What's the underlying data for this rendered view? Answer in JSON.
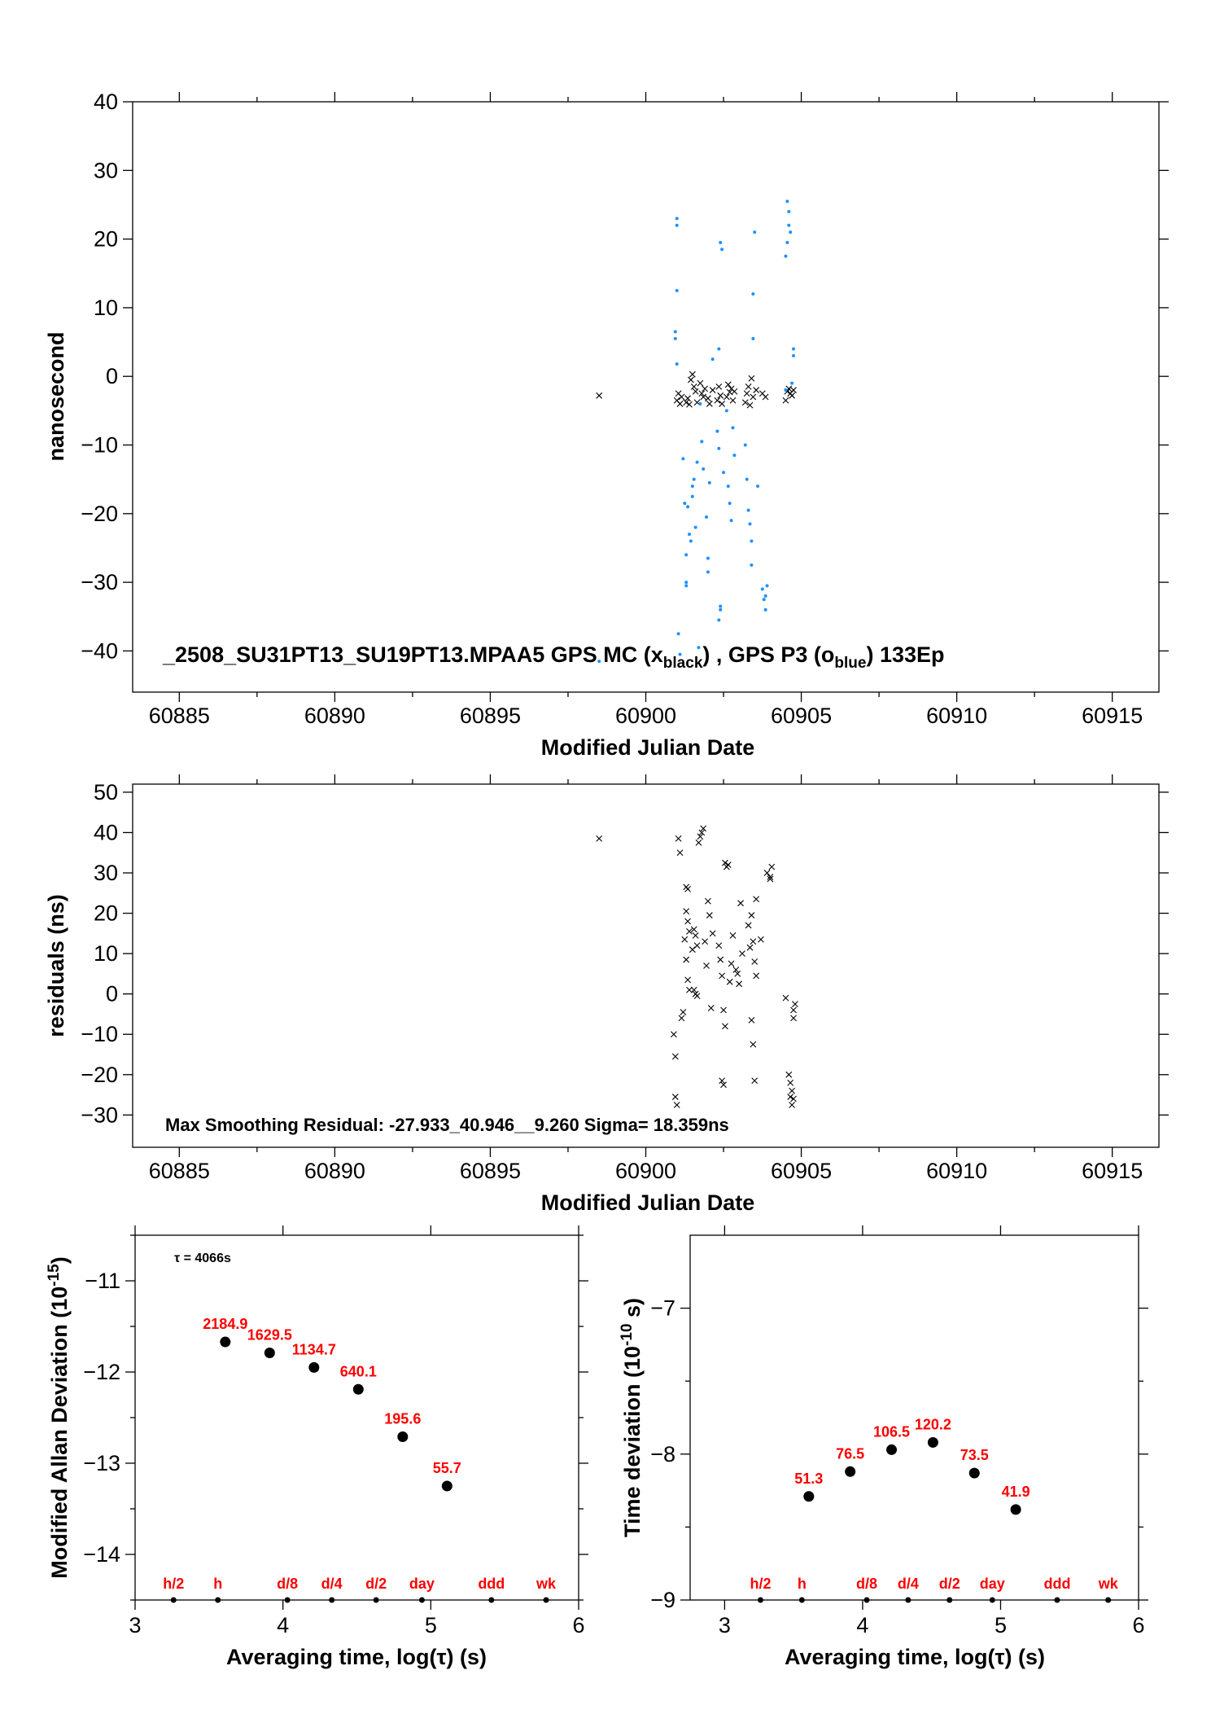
{
  "charts": {
    "top": {
      "title_line": "_2508_SU31PT13_SU19PT13.MPAA5    GPS MC (x",
      "title_sub1": "black",
      "title_mid": ") ,  GPS P3 (o",
      "title_sub2": "blue",
      "title_end": ")  133Ep",
      "xlabel": "Modified Julian Date",
      "ylabel": "nanosecond"
    },
    "mid": {
      "annotation": "Max Smoothing Residual: -27.933_40.946__9.260  Sigma= 18.359ns",
      "xlabel": "Modified Julian Date",
      "ylabel": "residuals (ns)"
    },
    "bl": {
      "tau_note": "τ = 4066s",
      "xlabel": "Averaging time, log(τ) (s)",
      "ylabel_main": "Modified Allan Deviation (10",
      "ylabel_sup": "-15",
      "ylabel_end": ")"
    },
    "br": {
      "xlabel": "Averaging time, log(τ) (s)",
      "ylabel_main": "Time deviation (10",
      "ylabel_sup": "-10",
      "ylabel_end": " s)"
    }
  },
  "chart_data": [
    {
      "type": "scatter",
      "id": "top",
      "xlim": [
        60883.5,
        60916.5
      ],
      "ylim": [
        -46,
        40
      ],
      "xticks": [
        60885,
        60890,
        60895,
        60900,
        60905,
        60910,
        60915
      ],
      "yticks": [
        -40,
        -30,
        -20,
        -10,
        0,
        10,
        20,
        30,
        40
      ],
      "series": [
        {
          "marker": "x",
          "color": "#000000",
          "points": [
            [
              60898.5,
              -2.8
            ],
            [
              60901.0,
              -3.5
            ],
            [
              60901.05,
              -2.5
            ],
            [
              60901.1,
              -4.0
            ],
            [
              60901.15,
              -3.0
            ],
            [
              60901.3,
              -3.8
            ],
            [
              60901.35,
              -3.2
            ],
            [
              60901.4,
              -4.1
            ],
            [
              60901.45,
              -0.5
            ],
            [
              60901.5,
              0.3
            ],
            [
              60901.55,
              -1.5
            ],
            [
              60901.6,
              -2.2
            ],
            [
              60901.65,
              -3.8
            ],
            [
              60901.75,
              -1.0
            ],
            [
              60901.8,
              -2.5
            ],
            [
              60901.85,
              -3.0
            ],
            [
              60901.9,
              -1.8
            ],
            [
              60902.0,
              -3.2
            ],
            [
              60902.05,
              -4.0
            ],
            [
              60902.15,
              -2.0
            ],
            [
              60902.3,
              -3.5
            ],
            [
              60902.35,
              -1.5
            ],
            [
              60902.4,
              -2.8
            ],
            [
              60902.45,
              -4.0
            ],
            [
              60902.6,
              -3.0
            ],
            [
              60902.65,
              -1.2
            ],
            [
              60902.7,
              -2.3
            ],
            [
              60902.75,
              -1.8
            ],
            [
              60902.8,
              -3.5
            ],
            [
              60902.85,
              -2.2
            ],
            [
              60903.2,
              -3.8
            ],
            [
              60903.25,
              -2.5
            ],
            [
              60903.3,
              -1.5
            ],
            [
              60903.35,
              -4.2
            ],
            [
              60903.4,
              -0.3
            ],
            [
              60903.45,
              -3.0
            ],
            [
              60903.55,
              -2.0
            ],
            [
              60903.75,
              -2.5
            ],
            [
              60903.85,
              -3.0
            ],
            [
              60904.5,
              -3.5
            ],
            [
              60904.55,
              -2.2
            ],
            [
              60904.6,
              -1.8
            ],
            [
              60904.65,
              -2.5
            ],
            [
              60904.7,
              -2.8
            ],
            [
              60904.75,
              -2.0
            ]
          ]
        },
        {
          "marker": "o",
          "color": "#1e90ff",
          "points": [
            [
              60898.5,
              -41.5
            ],
            [
              60901.0,
              23.0
            ],
            [
              60901.0,
              22.0
            ],
            [
              60901.0,
              12.5
            ],
            [
              60900.95,
              6.5
            ],
            [
              60900.95,
              5.5
            ],
            [
              60901.0,
              1.8
            ],
            [
              60901.05,
              -37.5
            ],
            [
              60901.1,
              -40.5
            ],
            [
              60901.2,
              -12.0
            ],
            [
              60901.25,
              -18.5
            ],
            [
              60901.3,
              -26.0
            ],
            [
              60901.3,
              -30.0
            ],
            [
              60901.3,
              -30.5
            ],
            [
              60901.35,
              -19.0
            ],
            [
              60901.4,
              -23.0
            ],
            [
              60901.45,
              -24.0
            ],
            [
              60901.5,
              -16.0
            ],
            [
              60901.5,
              -17.5
            ],
            [
              60901.55,
              -15.0
            ],
            [
              60901.6,
              -22.0
            ],
            [
              60901.65,
              -12.5
            ],
            [
              60901.7,
              -39.5
            ],
            [
              60901.75,
              -4.0
            ],
            [
              60901.8,
              -9.5
            ],
            [
              60901.85,
              -13.5
            ],
            [
              60901.95,
              -20.5
            ],
            [
              60902.0,
              -26.5
            ],
            [
              60902.0,
              -28.5
            ],
            [
              60902.05,
              -15.5
            ],
            [
              60902.15,
              2.5
            ],
            [
              60902.3,
              -8.0
            ],
            [
              60902.35,
              4.0
            ],
            [
              60902.35,
              -35.5
            ],
            [
              60902.35,
              -10.5
            ],
            [
              60902.4,
              19.5
            ],
            [
              60902.45,
              18.5
            ],
            [
              60902.4,
              -33.5
            ],
            [
              60902.4,
              -34.0
            ],
            [
              60902.5,
              -14.0
            ],
            [
              60902.6,
              -5.0
            ],
            [
              60902.65,
              -16.0
            ],
            [
              60902.7,
              -18.5
            ],
            [
              60902.75,
              -21.0
            ],
            [
              60902.8,
              -7.5
            ],
            [
              60902.85,
              -11.5
            ],
            [
              60903.2,
              -10.0
            ],
            [
              60903.25,
              -15.0
            ],
            [
              60903.3,
              -19.5
            ],
            [
              60903.35,
              -21.5
            ],
            [
              60903.4,
              -27.5
            ],
            [
              60903.4,
              -24.0
            ],
            [
              60903.45,
              5.5
            ],
            [
              60903.45,
              12.0
            ],
            [
              60903.5,
              21.0
            ],
            [
              60903.6,
              -16.0
            ],
            [
              60903.75,
              -31.0
            ],
            [
              60903.8,
              -32.5
            ],
            [
              60903.85,
              -34.0
            ],
            [
              60903.9,
              -30.5
            ],
            [
              60903.85,
              -32.0
            ],
            [
              60904.5,
              -2.0
            ],
            [
              60904.55,
              25.5
            ],
            [
              60904.6,
              24.0
            ],
            [
              60904.6,
              22.0
            ],
            [
              60904.65,
              21.0
            ],
            [
              60904.55,
              19.5
            ],
            [
              60904.5,
              17.5
            ],
            [
              60904.75,
              4.0
            ],
            [
              60904.75,
              3.0
            ],
            [
              60904.7,
              -1.0
            ]
          ]
        }
      ]
    },
    {
      "type": "scatter",
      "id": "mid",
      "xlim": [
        60883.5,
        60916.5
      ],
      "ylim": [
        -38,
        52
      ],
      "xticks": [
        60885,
        60890,
        60895,
        60900,
        60905,
        60910,
        60915
      ],
      "yticks": [
        -30,
        -20,
        -10,
        0,
        10,
        20,
        30,
        40,
        50
      ],
      "series": [
        {
          "marker": "x",
          "color": "#000000",
          "points": [
            [
              60898.5,
              38.5
            ],
            [
              60900.9,
              -10.0
            ],
            [
              60900.95,
              -15.5
            ],
            [
              60900.95,
              -25.5
            ],
            [
              60901.0,
              -27.5
            ],
            [
              60901.05,
              38.5
            ],
            [
              60901.1,
              35.0
            ],
            [
              60901.15,
              -6.0
            ],
            [
              60901.2,
              -4.5
            ],
            [
              60901.3,
              26.5
            ],
            [
              60901.35,
              26.0
            ],
            [
              60901.3,
              20.5
            ],
            [
              60901.35,
              18.0
            ],
            [
              60901.4,
              15.5
            ],
            [
              60901.25,
              13.5
            ],
            [
              60901.3,
              8.5
            ],
            [
              60901.35,
              3.5
            ],
            [
              60901.4,
              1.0
            ],
            [
              60901.5,
              11.0
            ],
            [
              60901.55,
              16.0
            ],
            [
              60901.6,
              14.5
            ],
            [
              60901.65,
              12.0
            ],
            [
              60901.55,
              1.0
            ],
            [
              60901.6,
              0.0
            ],
            [
              60901.65,
              -0.5
            ],
            [
              60901.7,
              37.5
            ],
            [
              60901.75,
              39.0
            ],
            [
              60901.8,
              40.0
            ],
            [
              60901.85,
              41.0
            ],
            [
              60901.9,
              13.0
            ],
            [
              60901.95,
              7.0
            ],
            [
              60902.0,
              23.0
            ],
            [
              60902.05,
              19.5
            ],
            [
              60902.1,
              -3.5
            ],
            [
              60902.15,
              15.0
            ],
            [
              60902.35,
              12.0
            ],
            [
              60902.4,
              8.5
            ],
            [
              60902.45,
              4.5
            ],
            [
              60902.5,
              -4.0
            ],
            [
              60902.55,
              -8.0
            ],
            [
              60902.45,
              -21.5
            ],
            [
              60902.5,
              -22.5
            ],
            [
              60902.6,
              31.5
            ],
            [
              60902.65,
              32.0
            ],
            [
              60902.55,
              32.5
            ],
            [
              60902.7,
              3.0
            ],
            [
              60902.75,
              7.5
            ],
            [
              60902.8,
              14.5
            ],
            [
              60902.9,
              6.0
            ],
            [
              60902.95,
              5.0
            ],
            [
              60903.0,
              2.5
            ],
            [
              60903.05,
              22.5
            ],
            [
              60903.1,
              10.0
            ],
            [
              60903.3,
              17.0
            ],
            [
              60903.35,
              11.5
            ],
            [
              60903.4,
              19.5
            ],
            [
              60903.45,
              13.0
            ],
            [
              60903.5,
              8.0
            ],
            [
              60903.55,
              4.5
            ],
            [
              60903.55,
              23.5
            ],
            [
              60903.4,
              -6.5
            ],
            [
              60903.45,
              -12.5
            ],
            [
              60903.5,
              -21.5
            ],
            [
              60903.7,
              13.5
            ],
            [
              60903.9,
              30.0
            ],
            [
              60904.0,
              28.5
            ],
            [
              60904.05,
              31.5
            ],
            [
              60904.0,
              29.0
            ],
            [
              60904.5,
              -1.0
            ],
            [
              60904.6,
              -20.0
            ],
            [
              60904.65,
              -22.0
            ],
            [
              60904.7,
              -24.0
            ],
            [
              60904.75,
              -26.0
            ],
            [
              60904.65,
              -25.5
            ],
            [
              60904.7,
              -27.5
            ],
            [
              60904.75,
              -4.0
            ],
            [
              60904.8,
              -2.5
            ],
            [
              60904.75,
              -6.0
            ]
          ]
        }
      ]
    },
    {
      "type": "scatter",
      "id": "bl",
      "xlim": [
        3,
        6
      ],
      "ylim": [
        -14.5,
        -10.5
      ],
      "xticks": [
        3,
        4,
        5,
        6
      ],
      "yticks": [
        -14,
        -13,
        -12,
        -11
      ],
      "points": [
        {
          "x": 3.61,
          "y": -11.67,
          "label": "2184.9"
        },
        {
          "x": 3.91,
          "y": -11.79,
          "label": "1629.5"
        },
        {
          "x": 4.21,
          "y": -11.95,
          "label": "1134.7"
        },
        {
          "x": 4.51,
          "y": -12.19,
          "label": "640.1"
        },
        {
          "x": 4.81,
          "y": -12.71,
          "label": "195.6"
        },
        {
          "x": 5.11,
          "y": -13.25,
          "label": "55.7"
        }
      ],
      "markers": [
        {
          "x": 3.26,
          "label": "h/2"
        },
        {
          "x": 3.56,
          "label": "h"
        },
        {
          "x": 4.03,
          "label": "d/8"
        },
        {
          "x": 4.33,
          "label": "d/4"
        },
        {
          "x": 4.63,
          "label": "d/2"
        },
        {
          "x": 4.94,
          "label": "day"
        },
        {
          "x": 5.41,
          "label": "ddd"
        },
        {
          "x": 5.78,
          "label": "wk"
        }
      ]
    },
    {
      "type": "scatter",
      "id": "br",
      "xlim": [
        2.75,
        6.0
      ],
      "ylim": [
        -9,
        -6.5
      ],
      "xticks": [
        3,
        4,
        5,
        6
      ],
      "yticks": [
        -9,
        -8,
        -7
      ],
      "points": [
        {
          "x": 3.61,
          "y": -8.29,
          "label": "51.3"
        },
        {
          "x": 3.91,
          "y": -8.12,
          "label": "76.5"
        },
        {
          "x": 4.21,
          "y": -7.97,
          "label": "106.5"
        },
        {
          "x": 4.51,
          "y": -7.92,
          "label": "120.2"
        },
        {
          "x": 4.81,
          "y": -8.13,
          "label": "73.5"
        },
        {
          "x": 5.11,
          "y": -8.38,
          "label": "41.9"
        }
      ],
      "markers": [
        {
          "x": 3.26,
          "label": "h/2"
        },
        {
          "x": 3.56,
          "label": "h"
        },
        {
          "x": 4.03,
          "label": "d/8"
        },
        {
          "x": 4.33,
          "label": "d/4"
        },
        {
          "x": 4.63,
          "label": "d/2"
        },
        {
          "x": 4.94,
          "label": "day"
        },
        {
          "x": 5.41,
          "label": "ddd"
        },
        {
          "x": 5.78,
          "label": "wk"
        }
      ]
    }
  ]
}
